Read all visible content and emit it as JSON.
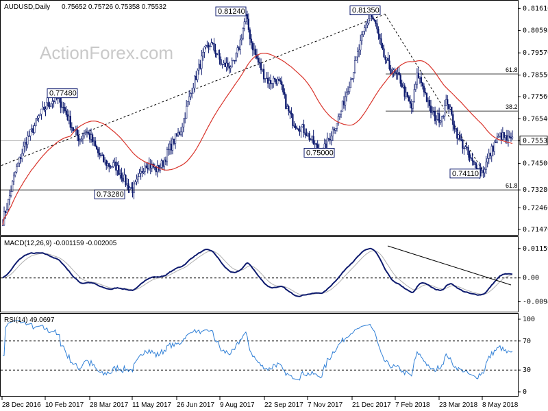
{
  "header": {
    "symbol": "AUDUSD,Daily",
    "ohlc": "0.75652 0.75726 0.75358 0.75532"
  },
  "watermark": "ActionForex.com",
  "colors": {
    "candle": "#0d1a6e",
    "ma": "#d9342b",
    "macd": "#0d1a6e",
    "macd_signal": "#b0b0b0",
    "rsi": "#2f7fd6",
    "grid": "#000000",
    "label_box": "#0d1a6e"
  },
  "chart_data": [
    {
      "type": "candlestick",
      "name": "price",
      "ylim": [
        0.714,
        0.8162
      ],
      "y_ticks": [
        "0.81610",
        "0.80595",
        "0.79570",
        "0.78550",
        "0.77560",
        "0.76540",
        "0.75532",
        "0.74500",
        "0.73280",
        "0.72460",
        "0.71470"
      ],
      "x_ticks": [
        "28 Dec 2016",
        "10 Feb 2017",
        "28 Mar 2017",
        "11 May 2017",
        "26 Jun 2017",
        "9 Aug 2017",
        "22 Sep 2017",
        "7 Nov 2017",
        "21 Dec 2017",
        "7 Feb 2018",
        "23 Mar 2018",
        "8 May 2018"
      ],
      "current_price": "0.75532",
      "annotations": [
        "0.77480",
        "0.73280",
        "0.81240",
        "0.75000",
        "0.81350",
        "0.74110"
      ],
      "fib_levels": [
        {
          "label": "61.8",
          "value": 0.786
        },
        {
          "label": "38.2",
          "value": 0.769
        },
        {
          "label": "61.8",
          "value": 0.7328
        }
      ],
      "path": [
        0.719,
        0.728,
        0.74,
        0.748,
        0.756,
        0.76,
        0.766,
        0.77,
        0.773,
        0.7748,
        0.772,
        0.766,
        0.76,
        0.756,
        0.76,
        0.756,
        0.75,
        0.746,
        0.744,
        0.744,
        0.74,
        0.735,
        0.7328,
        0.738,
        0.745,
        0.744,
        0.742,
        0.745,
        0.751,
        0.756,
        0.76,
        0.77,
        0.78,
        0.788,
        0.796,
        0.8,
        0.796,
        0.79,
        0.79,
        0.79,
        0.8,
        0.8124,
        0.8,
        0.792,
        0.786,
        0.782,
        0.784,
        0.78,
        0.77,
        0.764,
        0.762,
        0.76,
        0.756,
        0.752,
        0.75,
        0.756,
        0.762,
        0.768,
        0.778,
        0.786,
        0.796,
        0.806,
        0.8135,
        0.808,
        0.796,
        0.79,
        0.786,
        0.784,
        0.776,
        0.77,
        0.786,
        0.78,
        0.77,
        0.766,
        0.766,
        0.774,
        0.764,
        0.756,
        0.752,
        0.746,
        0.743,
        0.7411,
        0.748,
        0.754,
        0.758,
        0.756,
        0.7553
      ]
    },
    {
      "type": "line",
      "name": "MACD",
      "label": "MACD(12,26,9) -0.001159 -0.002005",
      "y_ticks": [
        "0.01159",
        "0.00",
        "-0.009408"
      ],
      "ylim": [
        -0.0125,
        0.0145
      ]
    },
    {
      "type": "line",
      "name": "RSI",
      "label": "RSI(14) 49.0697",
      "y_ticks": [
        "100",
        "70",
        "30",
        "0"
      ],
      "ylim": [
        0,
        100
      ],
      "current": 49.0697
    }
  ]
}
